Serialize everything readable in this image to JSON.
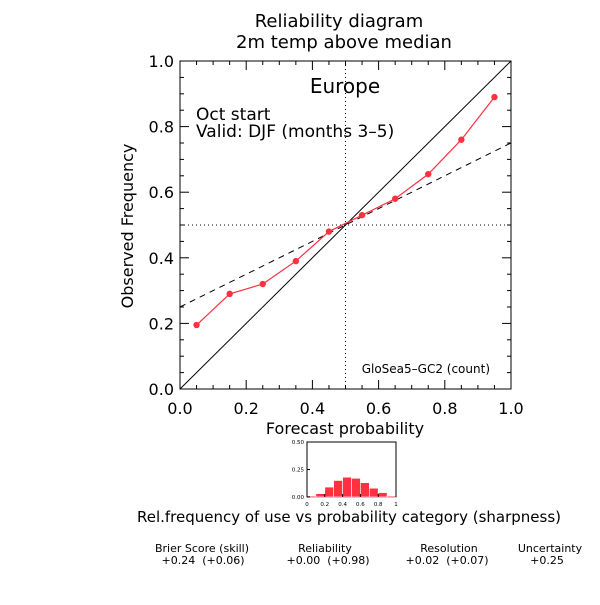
{
  "chart_data": [
    {
      "type": "line",
      "title": "Reliability diagram",
      "subtitle": "2m temp above median",
      "region": "Europe",
      "annotation_start": "Oct start",
      "annotation_valid": "Valid: DJF (months 3–5)",
      "model_label": "GloSea5–GC2 (count)",
      "xlabel": "Forecast probability",
      "ylabel": "Observed Frequency",
      "xlim": [
        0,
        1
      ],
      "ylim": [
        0,
        1
      ],
      "x_ticks": [
        "0.0",
        "0.2",
        "0.4",
        "0.6",
        "0.8",
        "1.0"
      ],
      "y_ticks": [
        "0.0",
        "0.2",
        "0.4",
        "0.6",
        "0.8",
        "1.0"
      ],
      "series": [
        {
          "color": "#ff3040",
          "x": [
            0.05,
            0.15,
            0.25,
            0.35,
            0.45,
            0.55,
            0.65,
            0.75,
            0.85,
            0.95
          ],
          "y": [
            0.195,
            0.29,
            0.32,
            0.39,
            0.48,
            0.53,
            0.58,
            0.655,
            0.76,
            0.89
          ]
        }
      ],
      "reference_lines": {
        "diagonal": [
          [
            0,
            0
          ],
          [
            1,
            1
          ]
        ],
        "no_skill": [
          [
            0,
            0.25
          ],
          [
            1,
            0.75
          ]
        ],
        "climatology_x": 0.5,
        "climatology_y": 0.5
      }
    },
    {
      "type": "bar",
      "title": "Rel.frequency of use vs probability category (sharpness)",
      "bar_color": "#ff3040",
      "x": [
        0.05,
        0.15,
        0.25,
        0.35,
        0.45,
        0.55,
        0.65,
        0.75,
        0.85,
        0.95
      ],
      "values": [
        0.01,
        0.03,
        0.09,
        0.15,
        0.18,
        0.17,
        0.13,
        0.08,
        0.04,
        0.01
      ],
      "xlim": [
        0,
        1
      ],
      "ylim": [
        0,
        0.5
      ],
      "x_ticks": [
        "0",
        "0.2",
        "0.4",
        "0.6",
        "0.8",
        "1"
      ],
      "y_ticks": [
        "0.00",
        "0.25",
        "0.50"
      ]
    }
  ],
  "scores": [
    {
      "label": "Brier Score (skill)",
      "value": "+0.24  (+0.06)"
    },
    {
      "label": "Reliability",
      "value": "+0.00  (+0.98)"
    },
    {
      "label": "Resolution",
      "value": "+0.02  (+0.07)"
    },
    {
      "label": "Uncertainty",
      "value": "+0.25"
    }
  ]
}
